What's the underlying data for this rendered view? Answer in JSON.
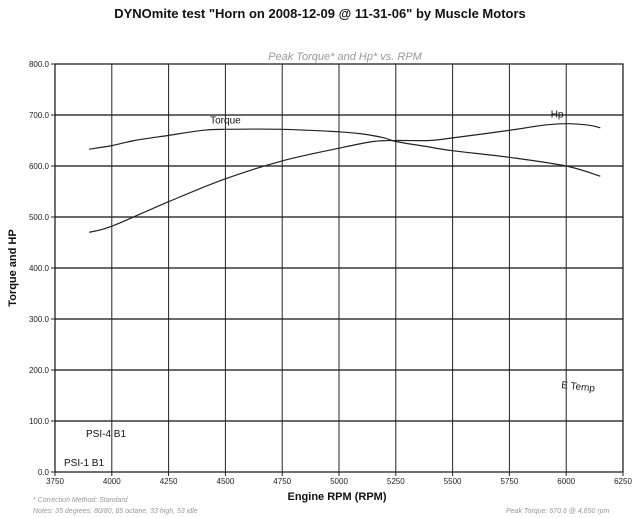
{
  "chart_data": {
    "type": "line",
    "title": "DYNOmite test \"Horn on 2008-12-09 @ 11-31-06\" by Muscle Motors",
    "subtitle": "Peak Torque* and Hp* vs. RPM",
    "xlabel": "Engine RPM (RPM)",
    "ylabel": "Torque and HP",
    "xlim": [
      3750,
      6250
    ],
    "ylim": [
      0,
      800
    ],
    "x_ticks": [
      "3750",
      "4000",
      "4250",
      "4500",
      "4750",
      "5000",
      "5250",
      "5500",
      "5750",
      "6000",
      "6250"
    ],
    "y_ticks": [
      "0.0",
      "100.0",
      "200.0",
      "300.0",
      "400.0",
      "500.0",
      "600.0",
      "700.0",
      "800.0"
    ],
    "grid": true,
    "series": [
      {
        "name": "Torque",
        "color": "#222222",
        "x": [
          3900,
          4000,
          4100,
          4250,
          4400,
          4500,
          4750,
          5000,
          5100,
          5200,
          5250,
          5400,
          5500,
          5750,
          6000,
          6150
        ],
        "y": [
          633,
          640,
          650,
          660,
          670,
          672,
          672,
          667,
          663,
          655,
          648,
          637,
          630,
          617,
          600,
          580
        ]
      },
      {
        "name": "Hp",
        "color": "#222222",
        "x": [
          3900,
          4000,
          4250,
          4500,
          4750,
          5000,
          5150,
          5250,
          5400,
          5500,
          5750,
          5900,
          6000,
          6100,
          6150
        ],
        "y": [
          470,
          482,
          530,
          575,
          610,
          635,
          648,
          650,
          650,
          655,
          670,
          680,
          683,
          680,
          675
        ]
      }
    ],
    "annotations": [
      "PSI-4 B1",
      "PSI-1 B1",
      "E Temp"
    ],
    "footnotes": [
      "* Correction Method: Standard",
      "Notes: 35 degrees, 80/80, 85 octane, 33 high, 53 idle",
      "Peak Torque: 670.6 @ 4,650 rpm"
    ]
  }
}
